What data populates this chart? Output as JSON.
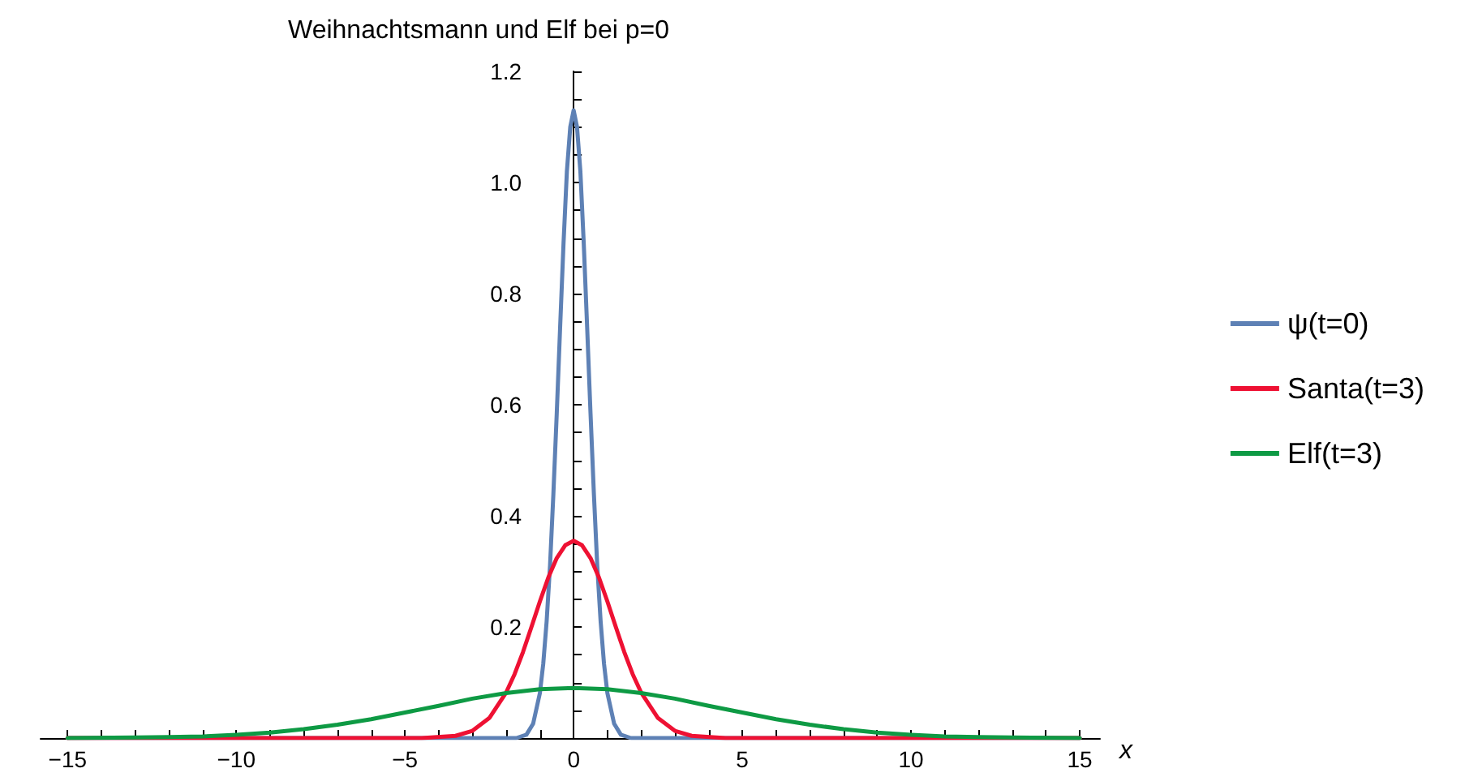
{
  "chart_data": {
    "type": "line",
    "title": "Weihnachtsmann und Elf bei p=0",
    "xlabel": "x",
    "legend": "right",
    "grid": false,
    "xlim": [
      -15.8,
      15.6
    ],
    "ylim": [
      0,
      1.2
    ],
    "xticks": [
      {
        "value": -15,
        "label": "−15"
      },
      {
        "value": -14,
        "label": null
      },
      {
        "value": -13,
        "label": null
      },
      {
        "value": -12,
        "label": null
      },
      {
        "value": -11,
        "label": null
      },
      {
        "value": -10,
        "label": "−10"
      },
      {
        "value": -9,
        "label": null
      },
      {
        "value": -8,
        "label": null
      },
      {
        "value": -7,
        "label": null
      },
      {
        "value": -6,
        "label": null
      },
      {
        "value": -5,
        "label": "−5"
      },
      {
        "value": -4,
        "label": null
      },
      {
        "value": -3,
        "label": null
      },
      {
        "value": -2,
        "label": null
      },
      {
        "value": -1,
        "label": null
      },
      0,
      {
        "value": 1,
        "label": null
      },
      {
        "value": 2,
        "label": null
      },
      {
        "value": 3,
        "label": null
      },
      {
        "value": 4,
        "label": null
      },
      5,
      {
        "value": 6,
        "label": null
      },
      {
        "value": 7,
        "label": null
      },
      {
        "value": 8,
        "label": null
      },
      {
        "value": 9,
        "label": null
      },
      10,
      {
        "value": 11,
        "label": null
      },
      {
        "value": 12,
        "label": null
      },
      {
        "value": 13,
        "label": null
      },
      {
        "value": 14,
        "label": null
      },
      15
    ],
    "yticks": [
      {
        "value": 0.05,
        "label": null
      },
      {
        "value": 0.1,
        "label": null
      },
      {
        "value": 0.15,
        "label": null
      },
      0.2,
      {
        "value": 0.25,
        "label": null
      },
      {
        "value": 0.3,
        "label": null
      },
      {
        "value": 0.35,
        "label": null
      },
      0.4,
      {
        "value": 0.45,
        "label": null
      },
      {
        "value": 0.5,
        "label": null
      },
      {
        "value": 0.55,
        "label": null
      },
      0.6,
      {
        "value": 0.65,
        "label": null
      },
      {
        "value": 0.7,
        "label": null
      },
      {
        "value": 0.75,
        "label": null
      },
      0.8,
      {
        "value": 0.85,
        "label": null
      },
      {
        "value": 0.9,
        "label": null
      },
      {
        "value": 0.95,
        "label": null
      },
      {
        "value": 1.0,
        "label": "1.0"
      },
      {
        "value": 1.05,
        "label": null
      },
      {
        "value": 1.1,
        "label": null
      },
      {
        "value": 1.15,
        "label": null
      },
      1.2
    ],
    "series": [
      {
        "name": "ψ(t=0)",
        "color": "#5e81b5",
        "x": [
          -15,
          -1.7,
          -1.4,
          -1.2,
          -1,
          -0.9,
          -0.8,
          -0.7,
          -0.6,
          -0.5,
          -0.4,
          -0.3,
          -0.2,
          -0.1,
          0,
          0.1,
          0.2,
          0.3,
          0.4,
          0.5,
          0.6,
          0.7,
          0.8,
          0.9,
          1,
          1.2,
          1.4,
          1.7,
          15
        ],
        "values": [
          0,
          0,
          0.006,
          0.026,
          0.081,
          0.134,
          0.21,
          0.31,
          0.44,
          0.585,
          0.74,
          0.89,
          1.02,
          1.1,
          1.13,
          1.1,
          1.02,
          0.89,
          0.74,
          0.585,
          0.44,
          0.31,
          0.21,
          0.134,
          0.081,
          0.026,
          0.006,
          0,
          0
        ]
      },
      {
        "name": "Santa(t=3)",
        "color": "#ee1133",
        "x": [
          -15,
          -4.5,
          -3.5,
          -3,
          -2.5,
          -2,
          -1.75,
          -1.5,
          -1.25,
          -1,
          -0.75,
          -0.5,
          -0.25,
          0,
          0.25,
          0.5,
          0.75,
          1,
          1.25,
          1.5,
          1.75,
          2,
          2.5,
          3,
          3.5,
          4.5,
          15
        ],
        "values": [
          0,
          0,
          0.004,
          0.013,
          0.036,
          0.082,
          0.115,
          0.155,
          0.2,
          0.246,
          0.289,
          0.324,
          0.347,
          0.355,
          0.347,
          0.324,
          0.289,
          0.246,
          0.2,
          0.155,
          0.115,
          0.082,
          0.036,
          0.013,
          0.004,
          0,
          0
        ]
      },
      {
        "name": "Elf(t=3)",
        "color": "#0e9a44",
        "x": [
          -15,
          -13,
          -12,
          -11,
          -10,
          -9,
          -8,
          -7,
          -6,
          -5,
          -4,
          -3,
          -2,
          -1,
          0,
          1,
          2,
          3,
          4,
          5,
          6,
          7,
          8,
          9,
          10,
          11,
          12,
          13,
          15
        ],
        "values": [
          0,
          0.001,
          0.002,
          0.003,
          0.006,
          0.01,
          0.016,
          0.024,
          0.034,
          0.046,
          0.058,
          0.071,
          0.081,
          0.088,
          0.09,
          0.088,
          0.081,
          0.071,
          0.058,
          0.046,
          0.034,
          0.024,
          0.016,
          0.01,
          0.006,
          0.003,
          0.002,
          0.001,
          0
        ]
      }
    ]
  }
}
